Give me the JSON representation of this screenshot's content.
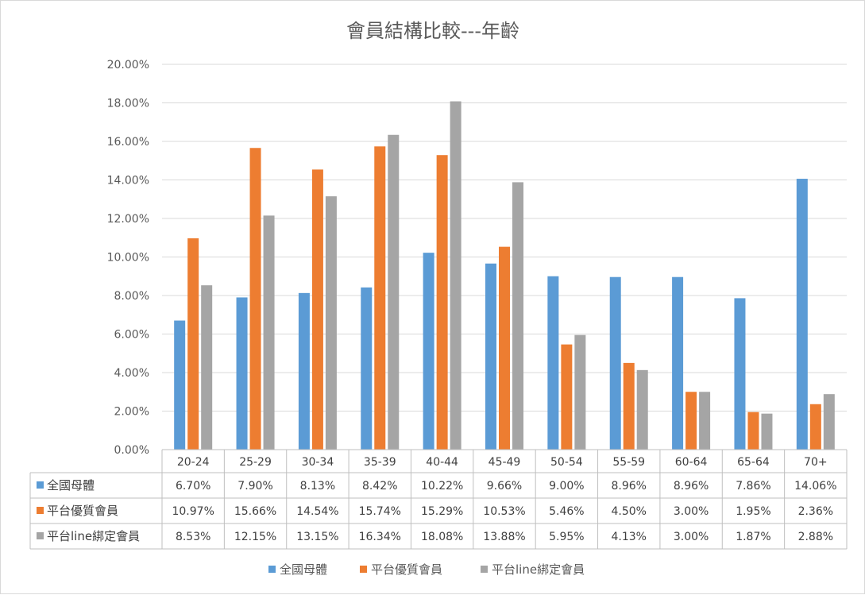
{
  "chart_data": {
    "type": "bar",
    "title": "會員結構比較---年齡",
    "xlabel": "",
    "ylabel": "",
    "ylim": [
      0,
      20
    ],
    "y_tick_step": 2,
    "y_tick_format": "percent_2dp",
    "grid": "horizontal",
    "legend_position": "bottom",
    "data_table": true,
    "categories": [
      "20-24",
      "25-29",
      "30-34",
      "35-39",
      "40-44",
      "45-49",
      "50-54",
      "55-59",
      "60-64",
      "65-64",
      "70+"
    ],
    "series": [
      {
        "name": "全國母體",
        "color": "#5b9bd5",
        "values": [
          6.7,
          7.9,
          8.13,
          8.42,
          10.22,
          9.66,
          9.0,
          8.96,
          8.96,
          7.86,
          14.06
        ],
        "labels": [
          "6.70%",
          "7.90%",
          "8.13%",
          "8.42%",
          "10.22%",
          "9.66%",
          "9.00%",
          "8.96%",
          "8.96%",
          "7.86%",
          "14.06%"
        ]
      },
      {
        "name": "平台優質會員",
        "color": "#ed7d31",
        "values": [
          10.97,
          15.66,
          14.54,
          15.74,
          15.29,
          10.53,
          5.46,
          4.5,
          3.0,
          1.95,
          2.36
        ],
        "labels": [
          "10.97%",
          "15.66%",
          "14.54%",
          "15.74%",
          "15.29%",
          "10.53%",
          "5.46%",
          "4.50%",
          "3.00%",
          "1.95%",
          "2.36%"
        ]
      },
      {
        "name": "平台line綁定會員",
        "color": "#a5a5a5",
        "values": [
          8.53,
          12.15,
          13.15,
          16.34,
          18.08,
          13.88,
          5.95,
          4.13,
          3.0,
          1.87,
          2.88
        ],
        "labels": [
          "8.53%",
          "12.15%",
          "13.15%",
          "16.34%",
          "18.08%",
          "13.88%",
          "5.95%",
          "4.13%",
          "3.00%",
          "1.87%",
          "2.88%"
        ]
      }
    ]
  }
}
